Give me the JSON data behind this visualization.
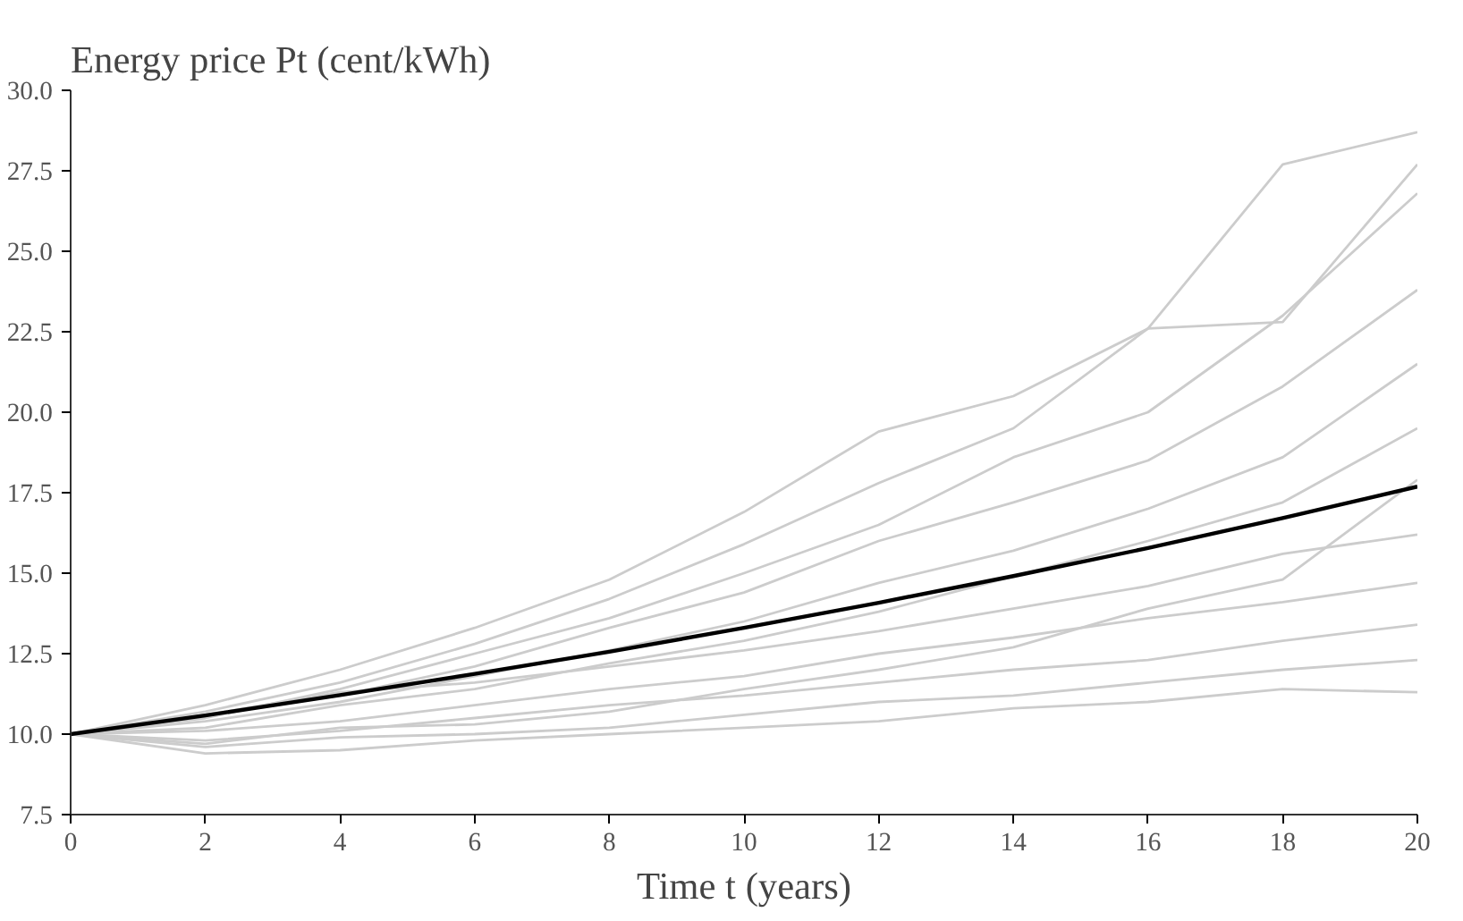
{
  "chart_data": {
    "type": "line",
    "title": "Energy price Pt (cent/kWh)",
    "xlabel": "Time t (years)",
    "x": [
      0,
      2,
      4,
      6,
      8,
      10,
      12,
      14,
      16,
      18,
      20
    ],
    "xlim": [
      0,
      20
    ],
    "xticks": [
      0,
      2,
      4,
      6,
      8,
      10,
      12,
      14,
      16,
      18,
      20
    ],
    "ylim": [
      7.5,
      30
    ],
    "yticks": [
      {
        "value": 7.5,
        "label": "7.5"
      },
      {
        "value": 10,
        "label": "10.0"
      },
      {
        "value": 12.5,
        "label": "12.5"
      },
      {
        "value": 15,
        "label": "15.0"
      },
      {
        "value": 17.5,
        "label": "17.5"
      },
      {
        "value": 20,
        "label": "20.0"
      },
      {
        "value": 22.5,
        "label": "22.5"
      },
      {
        "value": 25,
        "label": "25.0"
      },
      {
        "value": 27.5,
        "label": "27.5"
      },
      {
        "value": 30,
        "label": "30.0"
      }
    ],
    "grid": false,
    "marker": "none",
    "line_style": "solid",
    "series": [
      {
        "color": "#cccccc",
        "values": [
          10,
          10.9,
          12,
          13.3,
          14.8,
          16.9,
          19.4,
          20.5,
          22.6,
          27.7,
          28.7
        ]
      },
      {
        "color": "#cccccc",
        "values": [
          10,
          10.7,
          11.6,
          12.8,
          14.2,
          15.9,
          17.8,
          19.5,
          22.6,
          22.8,
          27.7
        ]
      },
      {
        "color": "#cccccc",
        "values": [
          10,
          10.5,
          11.4,
          12.5,
          13.6,
          15,
          16.5,
          18.6,
          20,
          23,
          26.8
        ]
      },
      {
        "color": "#cccccc",
        "values": [
          10,
          10.6,
          11.2,
          12.1,
          13.3,
          14.4,
          16,
          17.2,
          18.5,
          20.8,
          23.8
        ]
      },
      {
        "color": "#cccccc",
        "values": [
          10,
          10.4,
          11,
          11.8,
          12.6,
          13.5,
          14.7,
          15.7,
          17,
          18.6,
          21.5
        ]
      },
      {
        "color": "#cccccc",
        "values": [
          10,
          10.2,
          10.9,
          11.4,
          12.2,
          12.9,
          13.8,
          14.9,
          16,
          17.2,
          19.5
        ]
      },
      {
        "color": "#cccccc",
        "values": [
          10,
          10.6,
          11.3,
          11.6,
          12.1,
          12.6,
          13.2,
          13.9,
          14.6,
          15.6,
          16.2
        ]
      },
      {
        "color": "#cccccc",
        "values": [
          10,
          10.1,
          10.4,
          10.9,
          11.4,
          11.8,
          12.5,
          13,
          13.6,
          14.1,
          14.7
        ]
      },
      {
        "color": "#cccccc",
        "values": [
          10,
          9.8,
          10.1,
          10.5,
          10.9,
          11.2,
          11.6,
          12,
          12.3,
          12.9,
          13.4
        ]
      },
      {
        "color": "#cccccc",
        "values": [
          10,
          9.6,
          9.9,
          10,
          10.2,
          10.6,
          11,
          11.2,
          11.6,
          12,
          12.3
        ]
      },
      {
        "color": "#cccccc",
        "values": [
          10,
          9.4,
          9.5,
          9.8,
          10,
          10.2,
          10.4,
          10.8,
          11,
          11.4,
          11.3
        ]
      },
      {
        "color": "#cccccc",
        "values": [
          10,
          9.7,
          10.2,
          10.3,
          10.7,
          11.4,
          12,
          12.7,
          13.9,
          14.8,
          17.9
        ]
      },
      {
        "color": "#000000",
        "values": [
          10,
          10.58,
          11.21,
          11.87,
          12.56,
          13.3,
          14.08,
          14.91,
          15.78,
          16.71,
          17.69
        ]
      }
    ]
  }
}
